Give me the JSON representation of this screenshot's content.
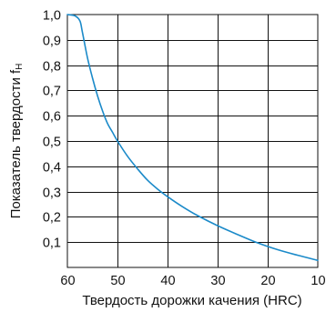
{
  "chart_data": {
    "type": "line",
    "xlabel": "Твердость дорожки качения (HRC)",
    "ylabel_main": "Показатель твердости f",
    "ylabel_sub": "H",
    "xlim": [
      60,
      10
    ],
    "ylim": [
      0,
      1.0
    ],
    "x_ticks": [
      "60",
      "50",
      "40",
      "30",
      "20",
      "10"
    ],
    "y_ticks": [
      "0,1",
      "0,2",
      "0,3",
      "0,4",
      "0,5",
      "0,6",
      "0,7",
      "0,8",
      "0,9",
      "1,0"
    ],
    "grid": true,
    "line_color": "#1b8ac9",
    "series": [
      {
        "x": [
          60,
          58.5,
          57.5,
          57,
          56,
          55,
          54,
          53,
          52,
          51,
          50,
          48,
          46,
          44,
          42,
          40,
          37,
          34,
          30,
          26,
          22,
          18,
          14,
          10
        ],
        "values": [
          1.0,
          0.995,
          0.975,
          0.93,
          0.83,
          0.75,
          0.68,
          0.62,
          0.57,
          0.535,
          0.5,
          0.44,
          0.39,
          0.345,
          0.31,
          0.28,
          0.24,
          0.205,
          0.165,
          0.13,
          0.097,
          0.07,
          0.048,
          0.028
        ]
      }
    ]
  }
}
